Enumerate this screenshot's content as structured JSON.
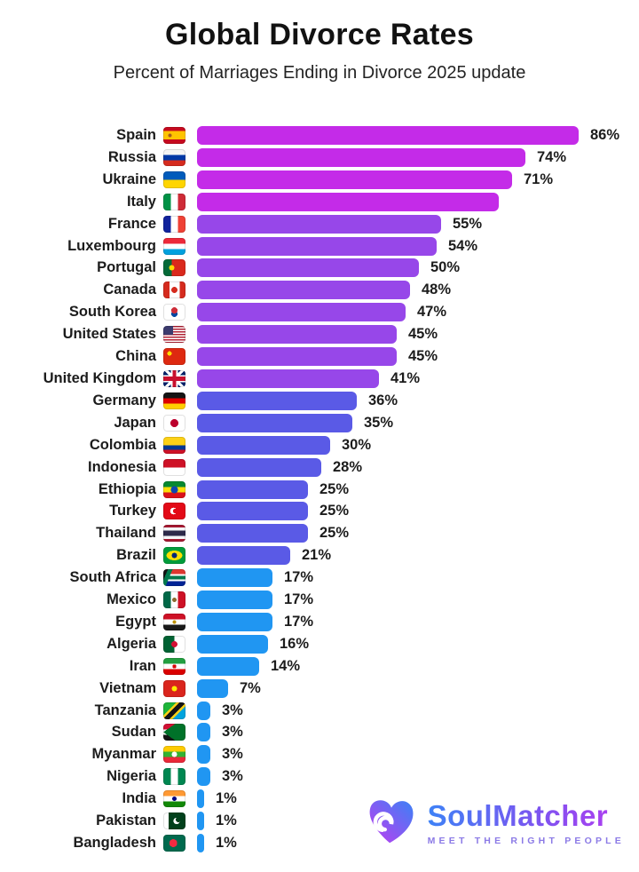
{
  "header": {
    "title": "Global Divorce Rates",
    "subtitle": "Percent of Marriages Ending in Divorce 2025 update"
  },
  "chart_data": {
    "type": "bar",
    "orientation": "horizontal",
    "unit": "%",
    "xlim": [
      0,
      86
    ],
    "title": "Global Divorce Rates",
    "subtitle": "Percent of Marriages Ending in Divorce 2025 update",
    "legend": "none",
    "grid": "off",
    "palette": {
      "magenta": "#c42be8",
      "purple": "#9747e9",
      "indigo": "#5a5ae6",
      "blue": "#2096f2"
    },
    "rows": [
      {
        "country": "Spain",
        "flag": "es",
        "bar": 86,
        "label": "86%",
        "color": "#c42be8"
      },
      {
        "country": "Russia",
        "flag": "ru",
        "bar": 74,
        "label": "74%",
        "color": "#c42be8"
      },
      {
        "country": "Ukraine",
        "flag": "ua",
        "bar": 71,
        "label": "71%",
        "color": "#c42be8"
      },
      {
        "country": "Italy",
        "flag": "it",
        "bar": 68,
        "label": "",
        "color": "#c42be8"
      },
      {
        "country": "France",
        "flag": "fr",
        "bar": 55,
        "label": "55%",
        "color": "#9747e9"
      },
      {
        "country": "Luxembourg",
        "flag": "lu",
        "bar": 54,
        "label": "54%",
        "color": "#9747e9"
      },
      {
        "country": "Portugal",
        "flag": "pt",
        "bar": 50,
        "label": "50%",
        "color": "#9747e9"
      },
      {
        "country": "Canada",
        "flag": "ca",
        "bar": 48,
        "label": "48%",
        "color": "#9747e9"
      },
      {
        "country": "South Korea",
        "flag": "kr",
        "bar": 47,
        "label": "47%",
        "color": "#9747e9"
      },
      {
        "country": "United States",
        "flag": "us",
        "bar": 45,
        "label": "45%",
        "color": "#9747e9"
      },
      {
        "country": "China",
        "flag": "cn",
        "bar": 45,
        "label": "45%",
        "color": "#9747e9"
      },
      {
        "country": "United Kingdom",
        "flag": "gb",
        "bar": 41,
        "label": "41%",
        "color": "#9747e9"
      },
      {
        "country": "Germany",
        "flag": "de",
        "bar": 36,
        "label": "36%",
        "color": "#5a5ae6"
      },
      {
        "country": "Japan",
        "flag": "jp",
        "bar": 35,
        "label": "35%",
        "color": "#5a5ae6"
      },
      {
        "country": "Colombia",
        "flag": "co",
        "bar": 30,
        "label": "30%",
        "color": "#5a5ae6"
      },
      {
        "country": "Indonesia",
        "flag": "id",
        "bar": 28,
        "label": "28%",
        "color": "#5a5ae6"
      },
      {
        "country": "Ethiopia",
        "flag": "et",
        "bar": 25,
        "label": "25%",
        "color": "#5a5ae6"
      },
      {
        "country": "Turkey",
        "flag": "tr",
        "bar": 25,
        "label": "25%",
        "color": "#5a5ae6"
      },
      {
        "country": "Thailand",
        "flag": "th",
        "bar": 25,
        "label": "25%",
        "color": "#5a5ae6"
      },
      {
        "country": "Brazil",
        "flag": "br",
        "bar": 21,
        "label": "21%",
        "color": "#5a5ae6"
      },
      {
        "country": "South Africa",
        "flag": "za",
        "bar": 17,
        "label": "17%",
        "color": "#2096f2"
      },
      {
        "country": "Mexico",
        "flag": "mx",
        "bar": 17,
        "label": "17%",
        "color": "#2096f2"
      },
      {
        "country": "Egypt",
        "flag": "eg",
        "bar": 17,
        "label": "17%",
        "color": "#2096f2"
      },
      {
        "country": "Algeria",
        "flag": "dz",
        "bar": 16,
        "label": "16%",
        "color": "#2096f2"
      },
      {
        "country": "Iran",
        "flag": "ir",
        "bar": 14,
        "label": "14%",
        "color": "#2096f2"
      },
      {
        "country": "Vietnam",
        "flag": "vn",
        "bar": 7,
        "label": "7%",
        "color": "#2096f2"
      },
      {
        "country": "Tanzania",
        "flag": "tz",
        "bar": 3,
        "label": "3%",
        "color": "#2096f2"
      },
      {
        "country": "Sudan",
        "flag": "sd",
        "bar": 3,
        "label": "3%",
        "color": "#2096f2"
      },
      {
        "country": "Myanmar",
        "flag": "mm",
        "bar": 3,
        "label": "3%",
        "color": "#2096f2"
      },
      {
        "country": "Nigeria",
        "flag": "ng",
        "bar": 3,
        "label": "3%",
        "color": "#2096f2"
      },
      {
        "country": "India",
        "flag": "in",
        "bar": 1,
        "label": "1%",
        "color": "#2096f2"
      },
      {
        "country": "Pakistan",
        "flag": "pk",
        "bar": 1,
        "label": "1%",
        "color": "#2096f2"
      },
      {
        "country": "Bangladesh",
        "flag": "bd",
        "bar": 1,
        "label": "1%",
        "color": "#2096f2"
      }
    ]
  },
  "logo": {
    "brand": "SoulMatcher",
    "tagline": "MEET THE RIGHT PEOPLE",
    "heart_gradient": [
      "#3b82f6",
      "#c13bf0"
    ]
  }
}
